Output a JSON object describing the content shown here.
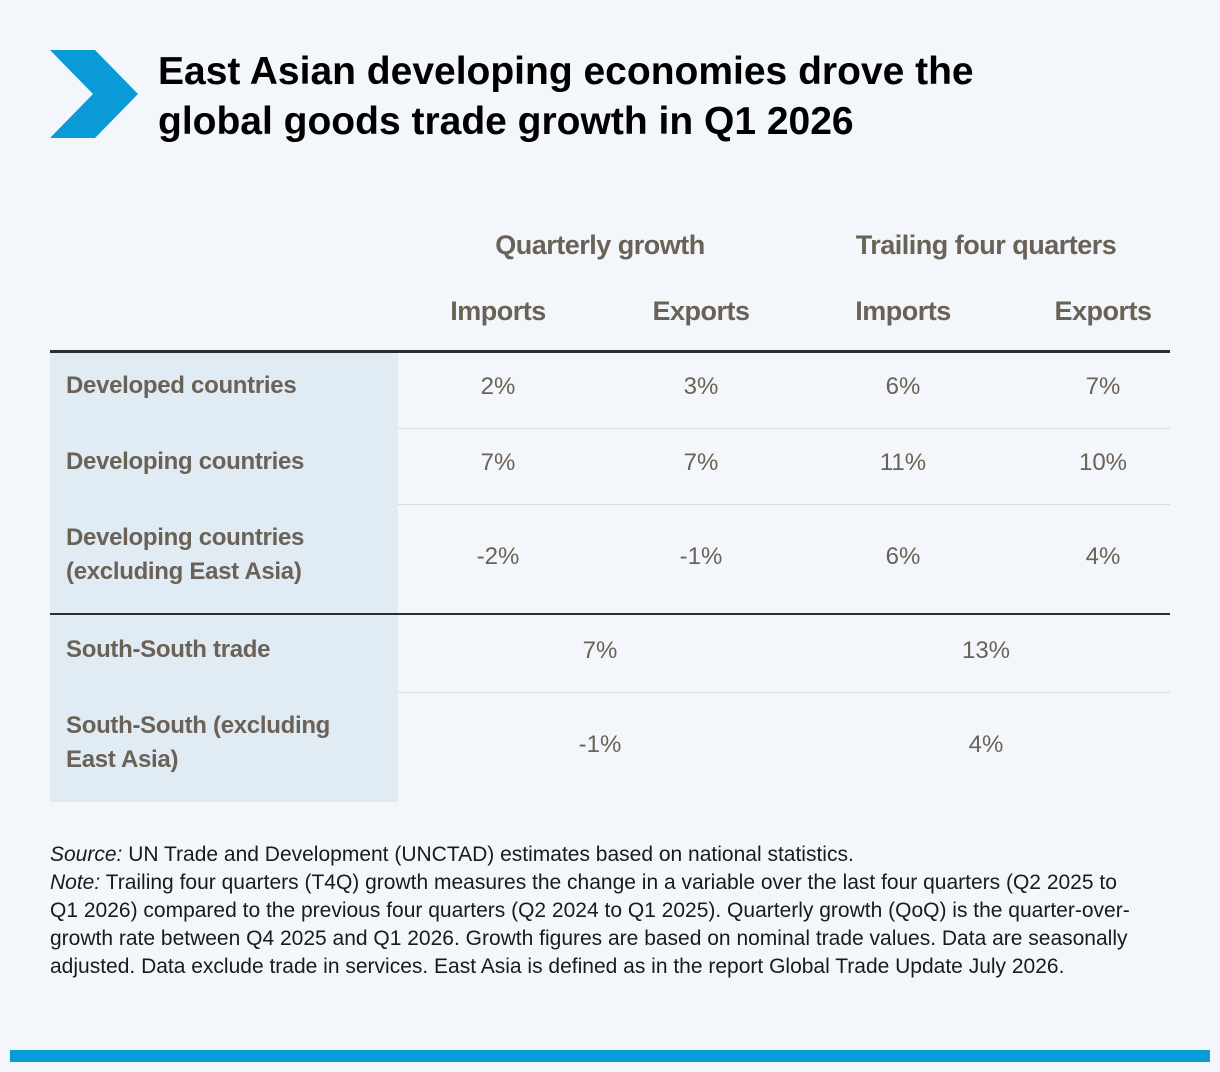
{
  "header": {
    "title_line1": "East Asian developing economies drove the",
    "title_line2": "global goods trade growth in Q1 2026",
    "chevron_icon": "chevron-right-icon",
    "accent_color": "#0a9ad8"
  },
  "chart_data": {
    "type": "table",
    "title": "East Asian developing economies drove the global goods trade growth in Q1 2026",
    "column_groups": [
      "Quarterly growth",
      "Trailing four quarters"
    ],
    "columns": [
      "Imports",
      "Exports",
      "Imports",
      "Exports"
    ],
    "rows": [
      {
        "label": "Developed countries",
        "values": [
          "2%",
          "3%",
          "6%",
          "7%"
        ]
      },
      {
        "label": "Developing countries",
        "values": [
          "7%",
          "7%",
          "11%",
          "10%"
        ]
      },
      {
        "label_line1": "Developing countries",
        "label_line2": "(excluding East Asia)",
        "values": [
          "-2%",
          "-1%",
          "6%",
          "4%"
        ]
      },
      {
        "label": "South-South trade",
        "values": [
          "7%",
          "13%"
        ]
      },
      {
        "label_line1": "South-South (excluding",
        "label_line2": "East Asia)",
        "values": [
          "-1%",
          "4%"
        ]
      }
    ]
  },
  "footer": {
    "source_label": "Source:",
    "source_text": " UN Trade and Development (UNCTAD) estimates based on national statistics.",
    "note_label": "Note:",
    "note_text": " Trailing four quarters (T4Q) growth measures the change in a variable over the last four quarters (Q2 2025 to Q1 2026) compared to the previous four quarters (Q2 2024 to Q1 2025). Quarterly growth (QoQ) is the quarter-over-growth rate between Q4 2025 and Q1 2026. Growth figures are based on nominal trade values. Data are seasonally adjusted. Data exclude trade in services. East Asia is defined as in the report Global Trade Update July 2026."
  }
}
